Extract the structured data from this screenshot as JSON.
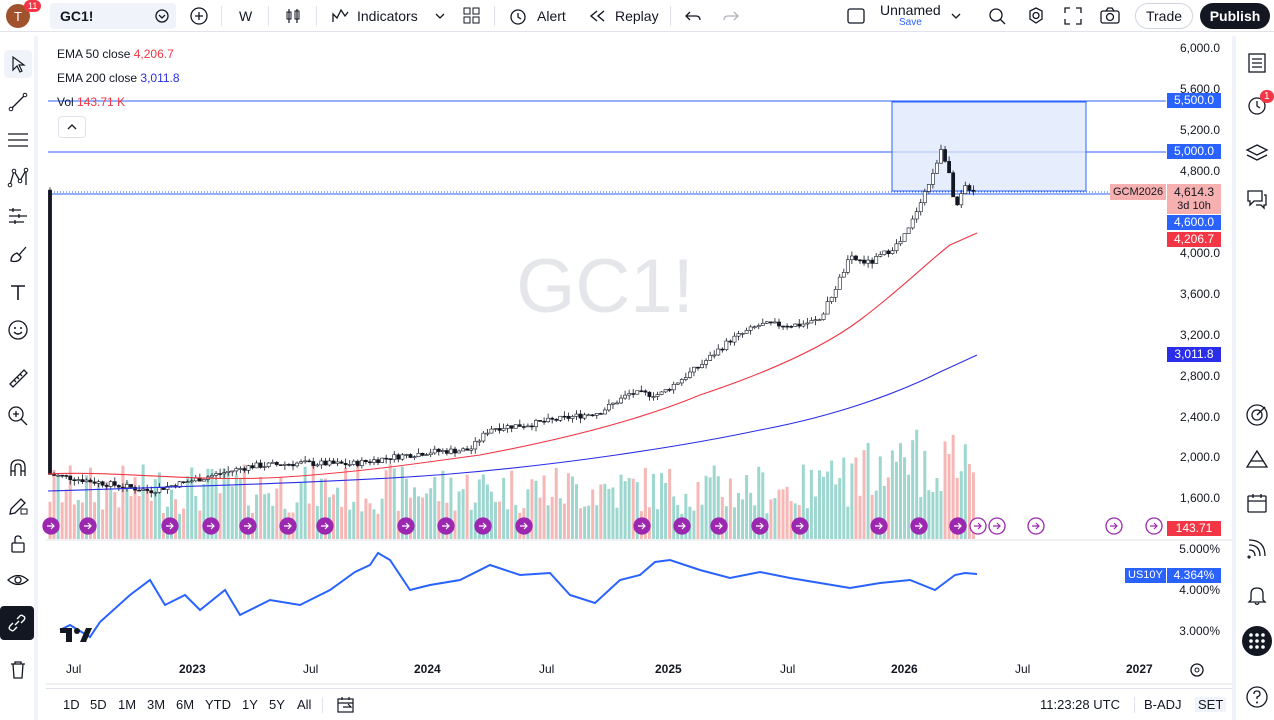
{
  "header": {
    "avatar_letter": "T",
    "notif_count": "11",
    "symbol": "GC1!",
    "interval": "W",
    "indicators_label": "Indicators",
    "alert_label": "Alert",
    "replay_label": "Replay",
    "layout_name": "Unnamed",
    "layout_save": "Save",
    "trade_label": "Trade",
    "publish_label": "Publish"
  },
  "legend": {
    "ema50_label": "EMA 50 close",
    "ema50_value": "4,206.7",
    "ema200_label": "EMA 200 close",
    "ema200_value": "3,011.8",
    "vol_label": "Vol",
    "vol_value": "143.71 K"
  },
  "watermark": "GC1!",
  "price_axis": [
    "6,000.0",
    "5,600.0",
    "5,200.0",
    "4,800.0",
    "4,000.0",
    "3,600.0",
    "3,200.0",
    "2,800.0",
    "2,400.0",
    "2,000.0",
    "1,600.0"
  ],
  "price_tags": {
    "p5500": "5,500.0",
    "p5000": "5,000.0",
    "current": "4,614.3",
    "countdown": "3d 10h",
    "symbol_tag": "GCM2026",
    "p4600": "4,600.0",
    "ema50": "4,206.7",
    "ema200": "3,011.8",
    "vol": "143.71 K"
  },
  "sub_axis": [
    "5.000%",
    "4.000%",
    "3.000%"
  ],
  "sub_tag": {
    "name": "US10Y",
    "value": "4.364%"
  },
  "time_axis": [
    "Jul",
    "2023",
    "Jul",
    "2024",
    "Jul",
    "2025",
    "Jul",
    "2026",
    "Jul",
    "2027"
  ],
  "bottom": {
    "ranges": [
      "1D",
      "5D",
      "1M",
      "3M",
      "6M",
      "YTD",
      "1Y",
      "5Y",
      "All"
    ],
    "clock": "11:23:28 UTC",
    "badj": "B-ADJ",
    "session": "SET"
  },
  "right_alert_count": "1",
  "colors": {
    "up": "#26a69a",
    "down": "#ef5350",
    "ema50": "#f23645",
    "ema200": "#2a2ee8",
    "line_blue": "#2962ff",
    "rect_fill": "#e3ebfb",
    "rect_stroke": "#2962ff"
  }
}
